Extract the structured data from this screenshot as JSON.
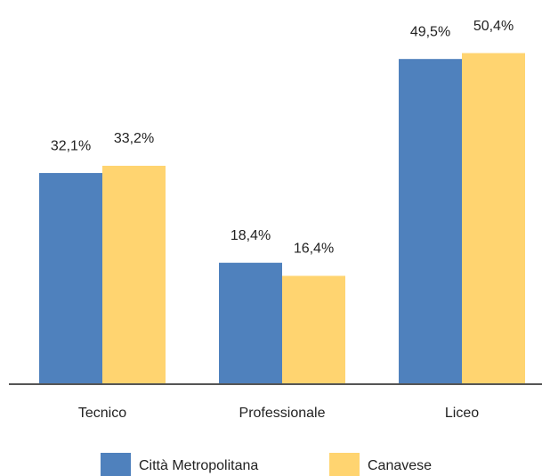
{
  "chart_data": {
    "type": "bar",
    "categories": [
      "Tecnico",
      "Professionale",
      "Liceo"
    ],
    "series": [
      {
        "name": "Città Metropolitana",
        "color": "#4f81bd",
        "values": [
          32.1,
          18.4,
          49.5
        ],
        "value_labels": [
          "32,1%",
          "18,4%",
          "49,5%"
        ]
      },
      {
        "name": "Canavese",
        "color": "#ffd470",
        "values": [
          33.2,
          16.4,
          50.4
        ],
        "value_labels": [
          "33,2%",
          "16,4%",
          "50,4%"
        ]
      }
    ],
    "legend": "bottom"
  }
}
